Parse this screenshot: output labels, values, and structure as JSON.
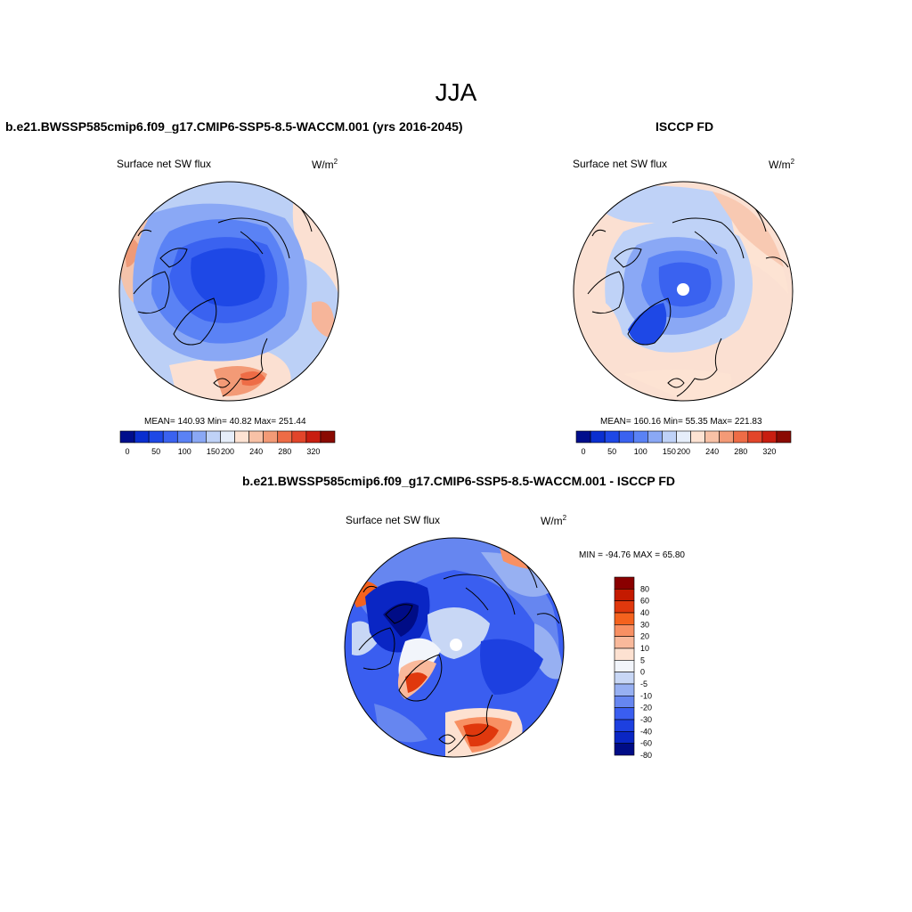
{
  "title": "JJA",
  "panels": [
    {
      "title": "b.e21.BWSSP585cmip6.f09_g17.CMIP6-SSP5-8.5-WACCM.001 (yrs 2016-2045)",
      "variable": "Surface net SW flux",
      "units_base": "W/m",
      "units_exp": "2",
      "stats": "MEAN= 140.93  Min=  40.82  Max= 251.44",
      "colorbar_ticks": [
        "0",
        "50",
        "100",
        "150",
        "200",
        "240",
        "280",
        "320"
      ]
    },
    {
      "title": "ISCCP FD",
      "variable": "Surface net SW flux",
      "units_base": "W/m",
      "units_exp": "2",
      "stats": "MEAN= 160.16  Min=  55.35  Max= 221.83",
      "colorbar_ticks": [
        "0",
        "50",
        "100",
        "150",
        "200",
        "240",
        "280",
        "320"
      ]
    },
    {
      "title": "b.e21.BWSSP585cmip6.f09_g17.CMIP6-SSP5-8.5-WACCM.001 - ISCCP FD",
      "variable": "Surface net SW flux",
      "units_base": "W/m",
      "units_exp": "2",
      "stats": "MIN = -94.76 MAX =  65.80",
      "colorbar_ticks": [
        "80",
        "60",
        "40",
        "30",
        "20",
        "10",
        "5",
        "0",
        "-5",
        "-10",
        "-20",
        "-30",
        "-40",
        "-60",
        "-80"
      ]
    }
  ],
  "colors": {
    "abs_scale": [
      "#000e8c",
      "#0a2fd0",
      "#1e48e6",
      "#3a62f0",
      "#5a82f5",
      "#8aa8f5",
      "#bfd2f7",
      "#e6eefa",
      "#fde3d3",
      "#f8c1a6",
      "#f39a76",
      "#ee6c46",
      "#e2452a",
      "#c81e10",
      "#8a0a02"
    ],
    "diff_scale": [
      "#8a0000",
      "#c41a00",
      "#e0380d",
      "#f4621e",
      "#f89063",
      "#f9b99b",
      "#fde1d1",
      "#f2f5fb",
      "#c8d7f5",
      "#97b0f2",
      "#6686f0",
      "#3a5ef0",
      "#1d40e0",
      "#0a26c4",
      "#000c86"
    ]
  }
}
